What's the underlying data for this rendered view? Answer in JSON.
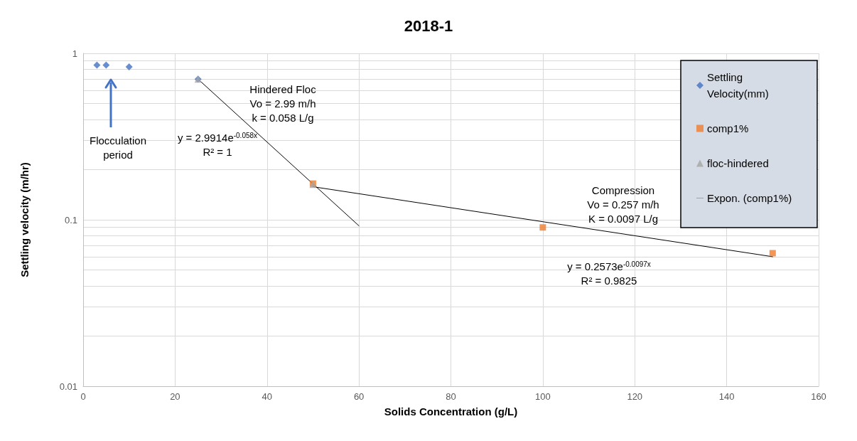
{
  "chart_data": {
    "type": "scatter",
    "title": "2018-1",
    "xlabel": "Solids Concentration (g/L)",
    "ylabel": "Settling velocity (m/hr)",
    "log": "y",
    "grid": true,
    "legend": "top right",
    "xlim": [
      0,
      160
    ],
    "xticks": [
      0,
      20,
      40,
      60,
      80,
      100,
      120,
      140,
      160
    ],
    "ylim": [
      0.01,
      1
    ],
    "yticks": [
      0.01,
      {
        "value": 0.02,
        "label": null
      },
      {
        "value": 0.03,
        "label": null
      },
      {
        "value": 0.04,
        "label": null
      },
      {
        "value": 0.05,
        "label": null
      },
      {
        "value": 0.06,
        "label": null
      },
      {
        "value": 0.07,
        "label": null
      },
      {
        "value": 0.08,
        "label": null
      },
      {
        "value": 0.09,
        "label": null
      },
      0.1,
      {
        "value": 0.2,
        "label": null
      },
      {
        "value": 0.3,
        "label": null
      },
      {
        "value": 0.4,
        "label": null
      },
      {
        "value": 0.5,
        "label": null
      },
      {
        "value": 0.6,
        "label": null
      },
      {
        "value": 0.7,
        "label": null
      },
      {
        "value": 0.8,
        "label": null
      },
      {
        "value": 0.9,
        "label": null
      },
      1
    ],
    "series": [
      {
        "name": "Settling Velocity(mm)",
        "marker": "diamond",
        "color": "#4472c4",
        "x": [
          3,
          5,
          10,
          25
        ],
        "values": [
          0.85,
          0.85,
          0.83,
          0.7
        ]
      },
      {
        "name": "comp1%",
        "marker": "square",
        "color": "#ed7d31",
        "x": [
          50,
          100,
          150
        ],
        "values": [
          0.165,
          0.09,
          0.063
        ]
      },
      {
        "name": "floc-hindered",
        "marker": "triangle",
        "color": "#a5a5a5",
        "x": [
          25,
          50
        ],
        "values": [
          0.7,
          0.163
        ]
      },
      {
        "type": "line",
        "marker": "none",
        "color": "#000000",
        "x": [
          25,
          60
        ],
        "values": [
          0.7,
          0.092
        ]
      },
      {
        "name": "Expon. (comp1%)",
        "type": "line",
        "marker": "none",
        "color": "#000000",
        "x": [
          50,
          150
        ],
        "values": [
          0.158,
          0.06
        ]
      }
    ],
    "annotations": [
      "Hindered Floc\nVo = 2.99 m/h\nk = 0.058 L/g",
      "Flocculation\nperiod",
      "y = 2.9914e$^{-0.058x}$\nR² = 1",
      "Compression\nVo = 0.257 m/h\nK = 0.0097 L/g",
      "y = 0.2573e$^{-0.0097x}$\nR² = 0.9825"
    ]
  }
}
